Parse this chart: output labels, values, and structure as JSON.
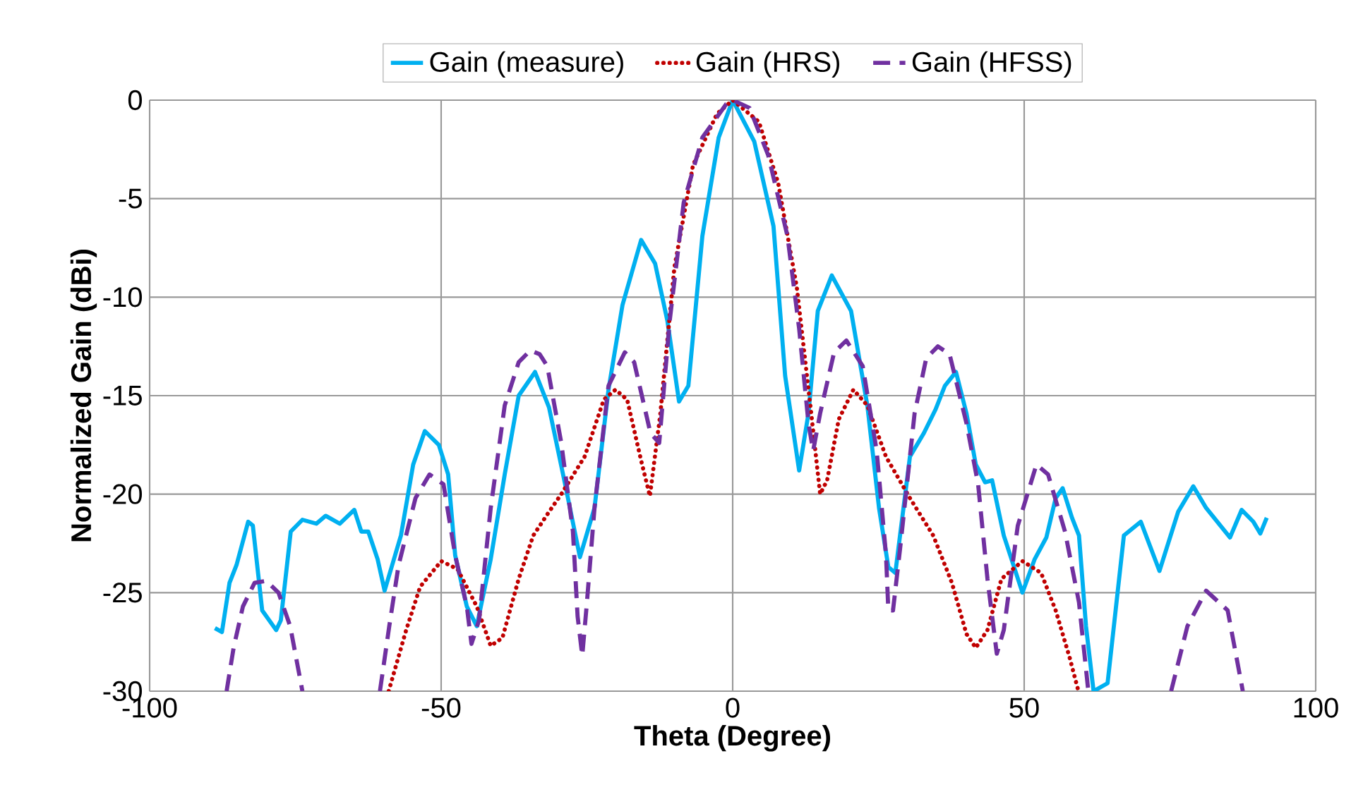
{
  "chart_data": {
    "type": "line",
    "xlabel": "Theta (Degree)",
    "ylabel": "Normalized Gain (dBi)",
    "xlim": [
      -100,
      100
    ],
    "xticks": [
      -100,
      -50,
      0,
      50,
      100
    ],
    "ylim": [
      -30,
      0
    ],
    "yticks": [
      -30,
      -25,
      -20,
      -15,
      -10,
      -5,
      0
    ],
    "grid": true,
    "legend": "top",
    "marker": "none",
    "series": [
      {
        "name": "Gain (measure)",
        "color": "#00b0f0",
        "line_style": "solid",
        "x": [
          -88.8,
          -87.6,
          -86.3,
          -85.1,
          -83.1,
          -82.3,
          -80.7,
          -78.3,
          -77.5,
          -75.8,
          -73.8,
          -71.4,
          -69.8,
          -67.4,
          -64.9,
          -63.7,
          -62.5,
          -60.9,
          -59.7,
          -58.5,
          -56.9,
          -54.8,
          -52.8,
          -50.4,
          -48.8,
          -47.6,
          -45.6,
          -43.9,
          -41.5,
          -39.1,
          -36.7,
          -33.9,
          -31.5,
          -28.6,
          -26.2,
          -23.7,
          -21.3,
          -18.9,
          -15.7,
          -13.3,
          -11.2,
          -9.2,
          -7.6,
          -5.2,
          -2.4,
          0,
          3.7,
          7.0,
          9.0,
          11.4,
          13.0,
          14.6,
          17.0,
          20.3,
          23.1,
          25.1,
          26.7,
          27.9,
          30.4,
          32.8,
          34.8,
          36.4,
          38.3,
          40.1,
          41.7,
          43.3,
          44.5,
          46.5,
          49.7,
          51.8,
          53.8,
          55.4,
          56.6,
          58.2,
          59.4,
          60.6,
          61.9,
          64.3,
          67.1,
          70.0,
          73.2,
          76.4,
          79.0,
          81.2,
          85.3,
          87.3,
          89.3,
          90.5,
          91.6
        ],
        "values": [
          -26.8,
          -27.0,
          -24.5,
          -23.6,
          -21.4,
          -21.6,
          -25.9,
          -26.9,
          -26.4,
          -21.9,
          -21.3,
          -21.5,
          -21.1,
          -21.5,
          -20.8,
          -21.9,
          -21.9,
          -23.3,
          -24.9,
          -23.7,
          -22.1,
          -18.5,
          -16.8,
          -17.5,
          -19.0,
          -23.1,
          -25.7,
          -26.7,
          -23.3,
          -19.0,
          -15.0,
          -13.8,
          -15.6,
          -19.7,
          -23.2,
          -20.7,
          -14.7,
          -10.4,
          -7.1,
          -8.3,
          -11.2,
          -15.3,
          -14.5,
          -6.9,
          -1.9,
          0,
          -2.1,
          -6.4,
          -14.0,
          -18.8,
          -15.9,
          -10.7,
          -8.9,
          -10.7,
          -15.5,
          -20.7,
          -23.7,
          -24.0,
          -18.1,
          -16.9,
          -15.7,
          -14.5,
          -13.8,
          -15.9,
          -18.5,
          -19.4,
          -19.3,
          -22.1,
          -25.0,
          -23.3,
          -22.2,
          -20.2,
          -19.7,
          -21.2,
          -22.1,
          -26.7,
          -30,
          -29.6,
          -22.1,
          -21.4,
          -23.9,
          -20.9,
          -19.6,
          -20.7,
          -22.2,
          -20.8,
          -21.4,
          -22.0,
          -21.2
        ]
      },
      {
        "name": "Gain (HRS)",
        "color": "#c00000",
        "line_style": "dotted",
        "x": [
          -59.0,
          -56.0,
          -53.6,
          -50.0,
          -47.2,
          -43.9,
          -41.5,
          -39.5,
          -36.7,
          -34.2,
          -31.5,
          -29.4,
          -25.4,
          -22.1,
          -20.1,
          -18.1,
          -15.7,
          -14.2,
          -12.4,
          -10.0,
          -6.8,
          -2.7,
          0,
          4.5,
          7.8,
          11.0,
          13.4,
          15.0,
          16.2,
          18.2,
          20.7,
          23.1,
          26.3,
          30.4,
          34.4,
          37.6,
          40.1,
          41.7,
          43.7,
          46.1,
          49.7,
          52.9,
          55.4,
          57.8,
          59.3
        ],
        "values": [
          -30,
          -26.9,
          -24.7,
          -23.4,
          -23.8,
          -25.7,
          -27.7,
          -27.3,
          -24.3,
          -22.1,
          -20.9,
          -20.0,
          -18.1,
          -15.2,
          -14.7,
          -15.2,
          -18.3,
          -20.1,
          -15.9,
          -8.5,
          -3.3,
          -0.7,
          0,
          -1.1,
          -4.2,
          -9.5,
          -15.7,
          -20.0,
          -19.3,
          -16.2,
          -14.7,
          -15.5,
          -18.1,
          -20.2,
          -22.1,
          -24.5,
          -27.1,
          -27.8,
          -26.9,
          -24.3,
          -23.4,
          -24.0,
          -25.9,
          -28.3,
          -30
        ]
      },
      {
        "name": "Gain (HFSS)",
        "color": "#7030a0",
        "line_style": "dashed",
        "x": [
          -86.8,
          -85.6,
          -84.0,
          -82.0,
          -80.0,
          -77.9,
          -75.9,
          -73.8,
          -67.0,
          -60.5,
          -58.9,
          -57.3,
          -54.4,
          -52.0,
          -49.6,
          -47.6,
          -45.6,
          -44.8,
          -43.5,
          -41.5,
          -39.1,
          -36.7,
          -34.7,
          -33.1,
          -31.8,
          -29.4,
          -27.4,
          -26.6,
          -25.8,
          -25.0,
          -23.7,
          -21.3,
          -18.5,
          -16.9,
          -14.1,
          -12.6,
          -10.8,
          -8.4,
          -5.2,
          -1.1,
          0,
          2.9,
          6.1,
          9.4,
          11.4,
          13.0,
          13.8,
          15.0,
          17.4,
          19.5,
          22.3,
          24.7,
          26.3,
          26.7,
          27.5,
          28.7,
          31.2,
          33.2,
          35.2,
          37.2,
          40.1,
          42.1,
          43.7,
          45.3,
          46.5,
          48.9,
          52.1,
          54.1,
          57.0,
          59.4,
          61.0,
          68.0,
          75.2,
          78.0,
          81.2,
          84.9,
          87.5
        ],
        "values": [
          -30,
          -27.8,
          -25.7,
          -24.5,
          -24.4,
          -25.0,
          -26.7,
          -30,
          null,
          -30,
          -26.7,
          -23.6,
          -20.2,
          -19.0,
          -19.5,
          -23.1,
          -25.7,
          -27.6,
          -26.4,
          -20.7,
          -15.5,
          -13.3,
          -12.7,
          -12.9,
          -13.5,
          -17.4,
          -21.9,
          -26.2,
          -28.2,
          -25.5,
          -20.7,
          -14.5,
          -12.8,
          -13.3,
          -16.9,
          -17.4,
          -11.2,
          -5.2,
          -1.9,
          -0.2,
          0,
          -0.4,
          -2.8,
          -6.9,
          -11.6,
          -16.4,
          -17.8,
          -15.9,
          -12.8,
          -12.2,
          -13.5,
          -17.8,
          -23.1,
          -25.9,
          -25.9,
          -22.8,
          -15.9,
          -13.1,
          -12.5,
          -12.9,
          -16.4,
          -19.5,
          -24.3,
          -28.1,
          -26.9,
          -21.6,
          -18.5,
          -19.0,
          -21.9,
          -25.5,
          -30,
          null,
          -30,
          -26.7,
          -24.9,
          -25.9,
          -30
        ]
      }
    ]
  }
}
